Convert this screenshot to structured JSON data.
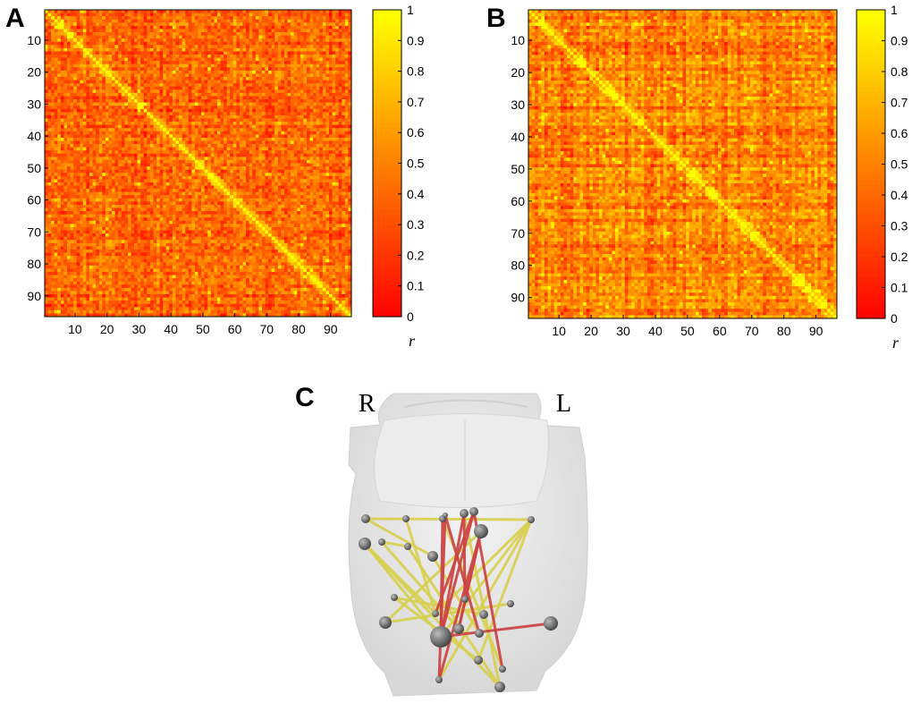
{
  "panels": {
    "a": {
      "label": "A"
    },
    "b": {
      "label": "B"
    },
    "c": {
      "label": "C"
    }
  },
  "brain": {
    "right_label": "R",
    "left_label": "L"
  },
  "chart_data": [
    {
      "type": "heatmap",
      "title": "",
      "panel": "A",
      "matrix_size": 96,
      "x_ticks": [
        "10",
        "20",
        "30",
        "40",
        "50",
        "60",
        "70",
        "80",
        "90"
      ],
      "y_ticks": [
        "10",
        "20",
        "30",
        "40",
        "50",
        "60",
        "70",
        "80",
        "90"
      ],
      "colorbar": {
        "label": "r",
        "ticks": [
          "0",
          "0.1",
          "0.2",
          "0.3",
          "0.4",
          "0.5",
          "0.6",
          "0.7",
          "0.8",
          "0.9",
          "1"
        ],
        "range": [
          0,
          1
        ],
        "colors": [
          "#ff0000",
          "#ffff00"
        ]
      },
      "note": "96x96 correlation matrix, diagonal r = 1"
    },
    {
      "type": "heatmap",
      "title": "",
      "panel": "B",
      "matrix_size": 96,
      "x_ticks": [
        "10",
        "20",
        "30",
        "40",
        "50",
        "60",
        "70",
        "80",
        "90"
      ],
      "y_ticks": [
        "10",
        "20",
        "30",
        "40",
        "50",
        "60",
        "70",
        "80",
        "90"
      ],
      "colorbar": {
        "label": "r",
        "ticks": [
          "0",
          "0.1",
          "0.2",
          "0.3",
          "0.4",
          "0.5",
          "0.6",
          "0.7",
          "0.8",
          "0.9",
          "1"
        ],
        "range": [
          0,
          1
        ],
        "colors": [
          "#ff0000",
          "#ffff00"
        ]
      },
      "note": "96x96 correlation matrix, diagonal r = 1"
    }
  ],
  "colors": {
    "edge_positive": "#d8d050",
    "edge_negative": "#cc4444",
    "node": "#666666",
    "brain": "#e6e6e6"
  }
}
